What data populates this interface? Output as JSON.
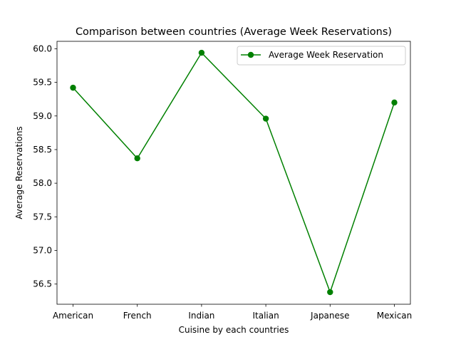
{
  "chart_data": {
    "type": "line",
    "title": "Comparison between countries (Average Week Reservations)",
    "xlabel": "Cuisine by each countries",
    "ylabel": "Average Reservations",
    "categories": [
      "American",
      "French",
      "Indian",
      "Italian",
      "Japanese",
      "Mexican"
    ],
    "series": [
      {
        "name": "Average Week Reservation",
        "values": [
          59.42,
          58.37,
          59.94,
          58.96,
          56.38,
          59.2
        ],
        "color": "#008000",
        "marker": "circle"
      }
    ],
    "ylim": [
      56.2,
      60.11
    ],
    "yticks": [
      56.5,
      57.0,
      57.5,
      58.0,
      58.5,
      59.0,
      59.5,
      60.0
    ],
    "ytick_labels": [
      "56.5",
      "57.0",
      "57.5",
      "58.0",
      "58.5",
      "59.0",
      "59.5",
      "60.0"
    ],
    "grid": false,
    "legend_position": "top-right"
  }
}
